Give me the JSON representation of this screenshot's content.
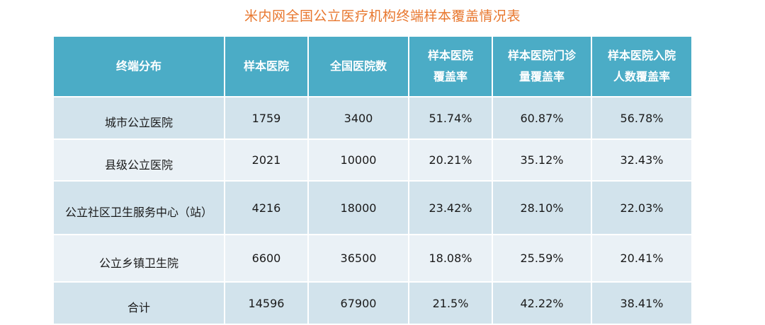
{
  "title": "米内网全国公立医疗机构终端样本覆盖情况表",
  "headers": [
    {
      "line1": "终端分布",
      "line2": ""
    },
    {
      "line1": "样本医院",
      "line2": ""
    },
    {
      "line1": "全国医院数",
      "line2": ""
    },
    {
      "line1": "样本医院",
      "line2": "覆盖率"
    },
    {
      "line1": "样本医院门诊",
      "line2": "量覆盖率"
    },
    {
      "line1": "样本医院入院",
      "line2": "人数覆盖率"
    }
  ],
  "rows": [
    {
      "cells": [
        "城市公立医院",
        "1759",
        "3400",
        "51.74%",
        "60.87%",
        "56.78%"
      ]
    },
    {
      "cells": [
        "县级公立医院",
        "2021",
        "10000",
        "20.21%",
        "35.12%",
        "32.43%"
      ]
    },
    {
      "cells": [
        "公立社区卫生服务中心（站）",
        "4216",
        "18000",
        "23.42%",
        "28.10%",
        "22.03%"
      ]
    },
    {
      "cells": [
        "公立乡镇卫生院",
        "6600",
        "36500",
        "18.08%",
        "25.59%",
        "20.41%"
      ]
    },
    {
      "cells": [
        "合计",
        "14596",
        "67900",
        "21.5%",
        "42.22%",
        "38.41%"
      ]
    }
  ]
}
